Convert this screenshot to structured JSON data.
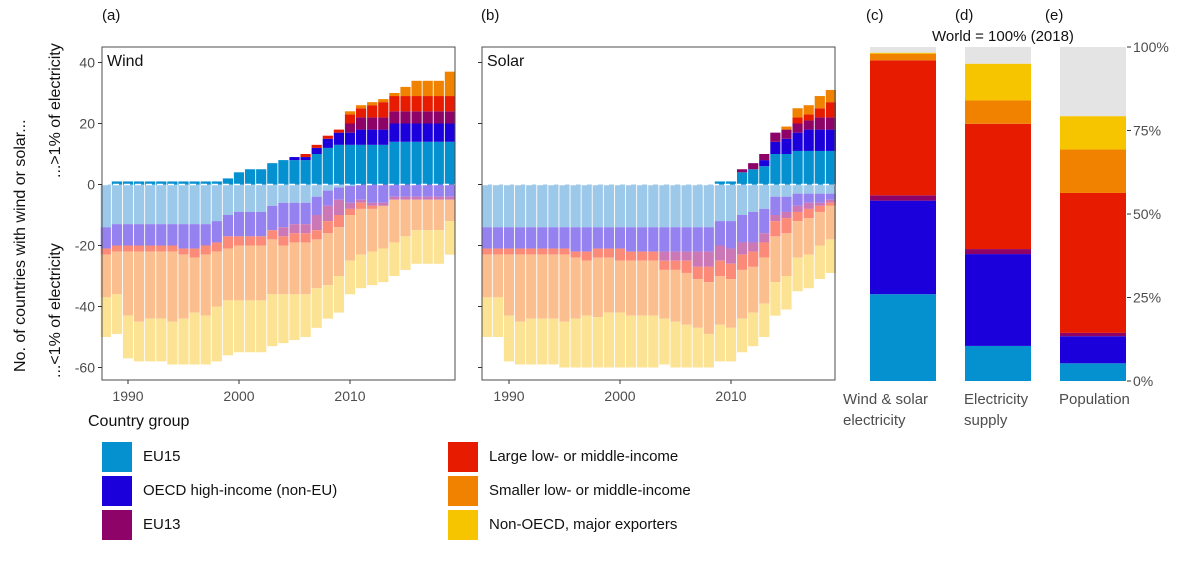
{
  "colors": {
    "EU15": "#0590d0",
    "OECD": "#1c00dc",
    "EU13": "#8e0367",
    "Large": "#e61b00",
    "Smaller": "#f08200",
    "NonOECD": "#f7c500",
    "EU15_light": "#9cc8ea",
    "OECD_light": "#9581f0",
    "EU13_light": "#cc78b6",
    "Large_light": "#fb8b78",
    "Smaller_light": "#fbbf8f",
    "NonOECD_light": "#fce293",
    "rest": "#e4e4e4"
  },
  "y_axis_title_line1": "No. of countries with wind or solar...",
  "y_axis_title_above": "...>1% of electricity",
  "y_axis_title_below": "...<1% of electricity",
  "right_title": "World = 100% (2018)",
  "legend": {
    "title": "Country group",
    "items": [
      {
        "key": "EU15",
        "label": "EU15"
      },
      {
        "key": "OECD",
        "label": "OECD high-income (non-EU)"
      },
      {
        "key": "EU13",
        "label": "EU13"
      },
      {
        "key": "Large",
        "label": "Large low- or middle-income"
      },
      {
        "key": "Smaller",
        "label": "Smaller low- or middle-income"
      },
      {
        "key": "NonOECD",
        "label": "Non-OECD, major exporters"
      }
    ]
  },
  "chart_data": [
    {
      "id": "a",
      "panel_tag": "(a)",
      "type": "bar",
      "stacked": true,
      "title": "Wind",
      "ylabel": "No. of countries with wind or solar... ...>1% of electricity / ...<1% of electricity",
      "ylim": [
        -62,
        45
      ],
      "yticks": [
        -60,
        -40,
        -20,
        0,
        20,
        40
      ],
      "xticks": [
        1990,
        2000,
        2010
      ],
      "years": [
        1988,
        1989,
        1990,
        1991,
        1992,
        1993,
        1994,
        1995,
        1996,
        1997,
        1998,
        1999,
        2000,
        2001,
        2002,
        2003,
        2004,
        2005,
        2006,
        2007,
        2008,
        2009,
        2010,
        2011,
        2012,
        2013,
        2014,
        2015,
        2016,
        2017,
        2018,
        2019
      ],
      "above_1pct": {
        "EU15": [
          0,
          1,
          1,
          1,
          1,
          1,
          1,
          1,
          1,
          1,
          1,
          2,
          4,
          5,
          5,
          7,
          8,
          8,
          8,
          10,
          12,
          13,
          13,
          13,
          13,
          13,
          14,
          14,
          14,
          14,
          14,
          14
        ],
        "OECD": [
          0,
          0,
          0,
          0,
          0,
          0,
          0,
          0,
          0,
          0,
          0,
          0,
          0,
          0,
          0,
          0,
          0,
          1,
          1,
          2,
          3,
          4,
          4,
          5,
          5,
          5,
          6,
          6,
          6,
          6,
          6,
          6
        ],
        "EU13": [
          0,
          0,
          0,
          0,
          0,
          0,
          0,
          0,
          0,
          0,
          0,
          0,
          0,
          0,
          0,
          0,
          0,
          0,
          0,
          0,
          0,
          0,
          3,
          4,
          4,
          4,
          4,
          4,
          4,
          4,
          4,
          4
        ],
        "Large": [
          0,
          0,
          0,
          0,
          0,
          0,
          0,
          0,
          0,
          0,
          0,
          0,
          0,
          0,
          0,
          0,
          0,
          0,
          1,
          1,
          1,
          1,
          3,
          3,
          4,
          5,
          5,
          5,
          5,
          5,
          5,
          5
        ],
        "Smaller": [
          0,
          0,
          0,
          0,
          0,
          0,
          0,
          0,
          0,
          0,
          0,
          0,
          0,
          0,
          0,
          0,
          0,
          0,
          0,
          0,
          0,
          0,
          1,
          1,
          1,
          1,
          1,
          3,
          5,
          5,
          5,
          8
        ],
        "NonOECD": [
          0,
          0,
          0,
          0,
          0,
          0,
          0,
          0,
          0,
          0,
          0,
          0,
          0,
          0,
          0,
          0,
          0,
          0,
          0,
          0,
          0,
          0,
          0,
          0,
          0,
          0,
          0,
          0,
          0,
          0,
          0,
          0
        ]
      },
      "below_1pct": {
        "EU15": [
          14,
          13,
          13,
          13,
          13,
          13,
          13,
          13,
          13,
          13,
          12,
          10,
          9,
          9,
          9,
          7,
          6,
          6,
          6,
          4,
          2,
          1,
          0.5,
          0,
          0,
          0,
          0,
          0,
          0,
          0,
          0,
          0
        ],
        "OECD": [
          7,
          7,
          7,
          7,
          7,
          7,
          7,
          8,
          8,
          7,
          7,
          7,
          8,
          8,
          8,
          8,
          8,
          7,
          7,
          6,
          5,
          4,
          5.5,
          5,
          6,
          6,
          4,
          4,
          4,
          4,
          4,
          4
        ],
        "EU13": [
          0,
          0,
          0,
          0,
          0,
          0,
          0,
          0,
          0,
          0,
          0,
          0,
          0,
          0,
          0,
          0,
          3,
          3,
          3,
          5,
          5,
          5,
          2,
          1,
          1,
          1,
          1,
          1,
          1,
          1,
          1,
          1
        ],
        "Large": [
          2,
          2,
          2,
          2,
          2,
          2,
          2,
          2,
          3,
          3,
          3,
          4,
          3,
          3,
          3,
          3,
          3,
          3,
          3,
          3,
          4,
          4,
          2,
          2,
          1,
          0,
          0,
          0,
          0,
          0,
          0,
          0
        ],
        "Smaller": [
          14,
          14,
          21,
          23,
          22,
          22,
          23,
          21,
          18,
          20,
          18,
          17,
          18,
          18,
          18,
          18,
          16,
          17,
          17,
          16,
          17,
          16,
          15,
          15,
          14,
          14,
          14,
          12,
          10,
          10,
          10,
          7
        ],
        "NonOECD": [
          13,
          13,
          14,
          13,
          14,
          14,
          14,
          15,
          17,
          16,
          18,
          18,
          17,
          17,
          17,
          17,
          16,
          15,
          14,
          13,
          11,
          12,
          11,
          11,
          11,
          11,
          11,
          11,
          11,
          11,
          11,
          11
        ]
      }
    },
    {
      "id": "b",
      "panel_tag": "(b)",
      "type": "bar",
      "stacked": true,
      "title": "Solar",
      "ylim": [
        -62,
        45
      ],
      "yticks": [
        -60,
        -40,
        -20,
        0,
        20,
        40
      ],
      "xticks": [
        1990,
        2000,
        2010
      ],
      "years": [
        1988,
        1989,
        1990,
        1991,
        1992,
        1993,
        1994,
        1995,
        1996,
        1997,
        1998,
        1999,
        2000,
        2001,
        2002,
        2003,
        2004,
        2005,
        2006,
        2007,
        2008,
        2009,
        2010,
        2011,
        2012,
        2013,
        2014,
        2015,
        2016,
        2017,
        2018,
        2019
      ],
      "above_1pct": {
        "EU15": [
          0,
          0,
          0,
          0,
          0,
          0,
          0,
          0,
          0,
          0,
          0,
          0,
          0,
          0,
          0,
          0,
          0,
          0,
          0,
          0,
          0,
          1,
          1,
          4,
          5,
          6,
          10,
          10,
          11,
          11,
          11,
          11
        ],
        "OECD": [
          0,
          0,
          0,
          0,
          0,
          0,
          0,
          0,
          0,
          0,
          0,
          0,
          0,
          0,
          0,
          0,
          0,
          0,
          0,
          0,
          0,
          0,
          0,
          0,
          0,
          2,
          4,
          5,
          6,
          7,
          7,
          7
        ],
        "EU13": [
          0,
          0,
          0,
          0,
          0,
          0,
          0,
          0,
          0,
          0,
          0,
          0,
          0,
          0,
          0,
          0,
          0,
          0,
          0,
          0,
          0,
          0,
          0,
          1,
          2,
          2,
          3,
          3,
          3,
          3,
          4,
          4
        ],
        "Large": [
          0,
          0,
          0,
          0,
          0,
          0,
          0,
          0,
          0,
          0,
          0,
          0,
          0,
          0,
          0,
          0,
          0,
          0,
          0,
          0,
          0,
          0,
          0,
          0,
          0,
          0,
          0,
          0,
          2,
          2,
          3,
          5
        ],
        "Smaller": [
          0,
          0,
          0,
          0,
          0,
          0,
          0,
          0,
          0,
          0,
          0,
          0,
          0,
          0,
          0,
          0,
          0,
          0,
          0,
          0,
          0,
          0,
          0,
          0,
          0,
          0,
          0,
          1,
          3,
          3,
          4,
          4
        ],
        "NonOECD": [
          0,
          0,
          0,
          0,
          0,
          0,
          0,
          0,
          0,
          0,
          0,
          0,
          0,
          0,
          0,
          0,
          0,
          0,
          0,
          0,
          0,
          0,
          0,
          0,
          0,
          0,
          0,
          0,
          0,
          0,
          0,
          0
        ]
      },
      "below_1pct": {
        "EU15": [
          14,
          14,
          14,
          14,
          14,
          14,
          14,
          14,
          14,
          14,
          14,
          14,
          14,
          14,
          14,
          14,
          14,
          14,
          14,
          14,
          14,
          12,
          12,
          10,
          9,
          8,
          4,
          4,
          3,
          3,
          3,
          3
        ],
        "OECD": [
          7,
          7,
          7,
          7,
          7,
          7,
          7,
          7,
          8,
          8,
          7,
          7,
          7,
          8,
          8,
          8,
          8,
          8,
          8,
          8,
          8,
          8,
          9,
          9,
          10,
          8,
          6,
          5,
          4,
          3,
          3,
          2
        ],
        "EU13": [
          0,
          0,
          0,
          0,
          0,
          0,
          0,
          0,
          0,
          0,
          0,
          0,
          0,
          0,
          0,
          0,
          3,
          3,
          3,
          5,
          5,
          5,
          5,
          4,
          3,
          3,
          2,
          2,
          2,
          2,
          1,
          1
        ],
        "Large": [
          2,
          2,
          2,
          2,
          2,
          2,
          2,
          2,
          2,
          3,
          3,
          3,
          4,
          3,
          3,
          3,
          3,
          3,
          4,
          4,
          5,
          5,
          5,
          5,
          5,
          5,
          5,
          5,
          3,
          3,
          2,
          1
        ],
        "Smaller": [
          14,
          14,
          20,
          22,
          21,
          21,
          21,
          22,
          20,
          18,
          19.5,
          18,
          17,
          18,
          18,
          18,
          16,
          17,
          17,
          16,
          17,
          16,
          16,
          16,
          15,
          15,
          15,
          14,
          12,
          12,
          11,
          11
        ],
        "NonOECD": [
          13,
          13,
          15,
          14,
          15,
          15,
          15,
          15,
          16,
          17,
          16.5,
          18,
          18,
          17,
          17,
          17,
          15,
          15,
          14,
          13,
          11,
          12,
          11,
          11,
          11,
          11,
          11,
          11,
          11,
          11,
          11,
          11
        ]
      }
    },
    {
      "id": "c",
      "panel_tag": "(c)",
      "type": "bar",
      "stacked": true,
      "unit": "% of world (2018)",
      "category": "Wind & solar electricity",
      "shares": {
        "EU15": 26,
        "OECD": 28,
        "EU13": 1.6,
        "Large": 40.4,
        "Smaller": 2,
        "NonOECD": 0.3,
        "Rest": 1.7
      }
    },
    {
      "id": "d",
      "panel_tag": "(d)",
      "type": "bar",
      "stacked": true,
      "unit": "% of world (2018)",
      "category": "Electricity supply",
      "shares": {
        "EU15": 10.5,
        "OECD": 27.5,
        "EU13": 1.5,
        "Large": 37.5,
        "Smaller": 7,
        "NonOECD": 11,
        "Rest": 5
      }
    },
    {
      "id": "e",
      "panel_tag": "(e)",
      "type": "bar",
      "stacked": true,
      "unit": "% of world (2018)",
      "category": "Population",
      "shares": {
        "EU15": 5.3,
        "OECD": 8.1,
        "EU13": 1,
        "Large": 41.9,
        "Smaller": 13,
        "NonOECD": 10,
        "Rest": 20.7
      }
    }
  ],
  "share_axis": {
    "ticks": [
      0,
      25,
      50,
      75,
      100
    ],
    "tick_labels": [
      "0%",
      "25%",
      "50%",
      "75%",
      "100%"
    ]
  },
  "share_categories": [
    {
      "line1": "Wind & solar",
      "line2": "electricity"
    },
    {
      "line1": "Electricity",
      "line2": "supply"
    },
    {
      "line1": "Population",
      "line2": ""
    }
  ]
}
